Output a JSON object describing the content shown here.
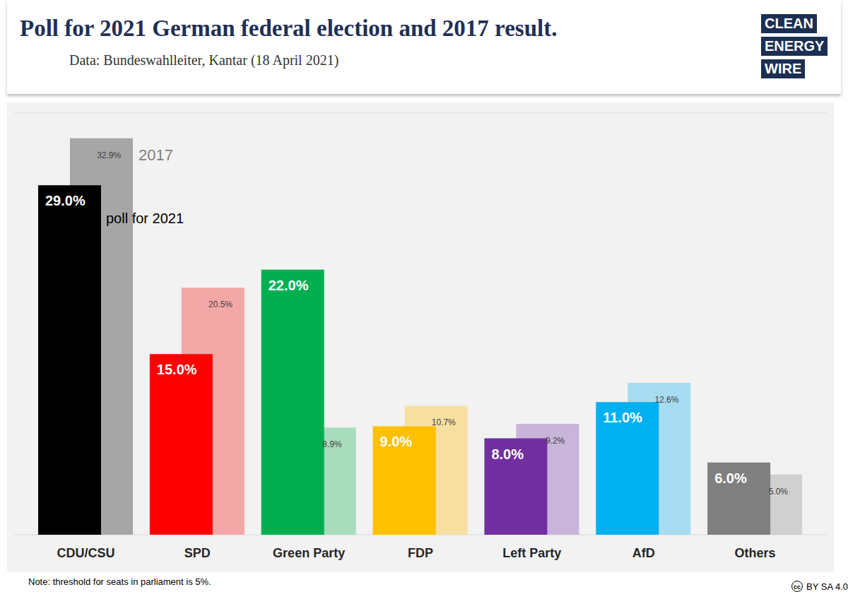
{
  "chart_data": {
    "type": "bar",
    "title": "Poll for 2021 German federal election and 2017 result.",
    "subtitle": "Data: Bundeswahlleiter, Kantar (18 April 2021)",
    "note": "Note: threshold for seats in parliament is 5%.",
    "logo": [
      "CLEAN",
      "ENERGY",
      "WIRE"
    ],
    "license_icon": "cc",
    "license": "BY SA 4.0",
    "categories": [
      "CDU/CSU",
      "SPD",
      "Green Party",
      "FDP",
      "Left Party",
      "AfD",
      "Others"
    ],
    "series": [
      {
        "name": "poll for 2021",
        "values": [
          29.0,
          15.0,
          22.0,
          9.0,
          8.0,
          11.0,
          6.0
        ],
        "value_labels": [
          "29.0%",
          "15.0%",
          "22.0%",
          "9.0%",
          "8.0%",
          "11.0%",
          "6.0%"
        ],
        "colors": [
          "#000000",
          "#ff0000",
          "#00b050",
          "#ffc000",
          "#7030a0",
          "#00b0f0",
          "#808080"
        ]
      },
      {
        "name": "2017",
        "values": [
          32.9,
          20.5,
          8.9,
          10.7,
          9.2,
          12.6,
          5.0
        ],
        "value_labels": [
          "32.9%",
          "20.5%",
          "8.9%",
          "10.7%",
          "9.2%",
          "12.6%",
          "5.0%"
        ],
        "colors": [
          "#a6a6a6",
          "#f4a7a7",
          "#a9dcbd",
          "#f7e09f",
          "#c9b4da",
          "#a7dcf1",
          "#d0d0d0"
        ]
      }
    ],
    "ylim": [
      0,
      35
    ],
    "yticks": [
      0,
      5,
      10,
      15,
      20,
      25,
      30,
      35
    ],
    "grid": true,
    "data_labels": true,
    "tick_labels": "x"
  }
}
